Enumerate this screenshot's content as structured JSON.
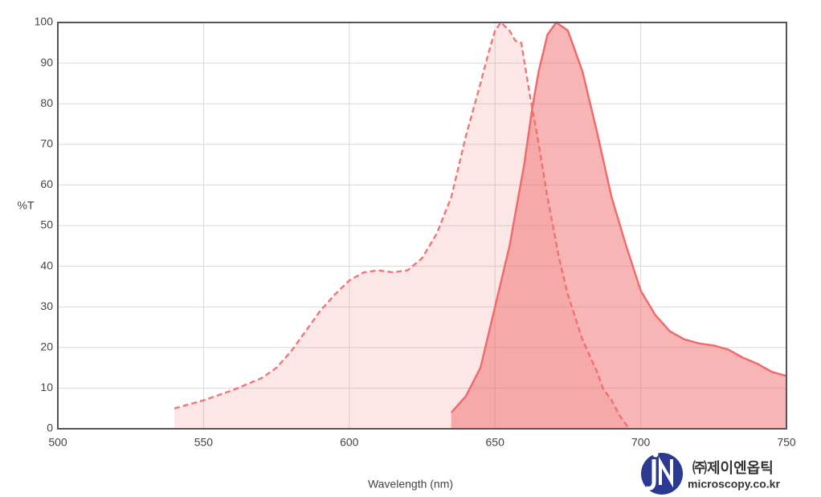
{
  "chart_data": {
    "type": "area",
    "x_label": "Wavelength (nm)",
    "y_label": "%T",
    "xlim": [
      500,
      750
    ],
    "xticks": [
      500,
      550,
      600,
      650,
      700,
      750
    ],
    "ylim": [
      0,
      100
    ],
    "yticks": [
      0,
      10,
      20,
      30,
      40,
      50,
      60,
      70,
      80,
      90,
      100
    ],
    "grid": true,
    "series": [
      {
        "color": "#f07a7a",
        "line_style": "dashed",
        "x": [
          540,
          550,
          560,
          570,
          575,
          580,
          585,
          590,
          595,
          600,
          605,
          610,
          615,
          620,
          625,
          630,
          635,
          640,
          645,
          648,
          650,
          652,
          655,
          657,
          659,
          662,
          665,
          668,
          672,
          675,
          680,
          685,
          687,
          690,
          693,
          696
        ],
        "values": [
          5,
          7,
          9.5,
          12.5,
          15,
          19,
          24,
          29,
          33,
          36.5,
          38.5,
          39,
          38.5,
          39,
          42,
          48,
          57,
          72,
          85,
          93,
          98,
          100,
          98,
          95.5,
          95,
          82,
          70,
          57,
          42,
          33,
          22,
          14,
          10,
          7,
          3,
          0
        ]
      },
      {
        "color": "#f06c6c",
        "line_style": "solid",
        "x": [
          635,
          640,
          645,
          650,
          655,
          660,
          663,
          665,
          668,
          671,
          675,
          680,
          685,
          690,
          695,
          700,
          705,
          710,
          715,
          720,
          725,
          730,
          735,
          740,
          745,
          750
        ],
        "values": [
          4,
          8,
          15,
          30,
          45,
          65,
          80,
          88,
          97,
          100,
          98,
          88,
          73,
          57,
          45,
          34,
          28,
          24,
          22,
          21,
          20.5,
          19.5,
          17.5,
          16,
          14,
          13
        ]
      }
    ]
  },
  "logo": {
    "company": "㈜제이엔옵틱",
    "website": "microscopy.co.kr"
  }
}
